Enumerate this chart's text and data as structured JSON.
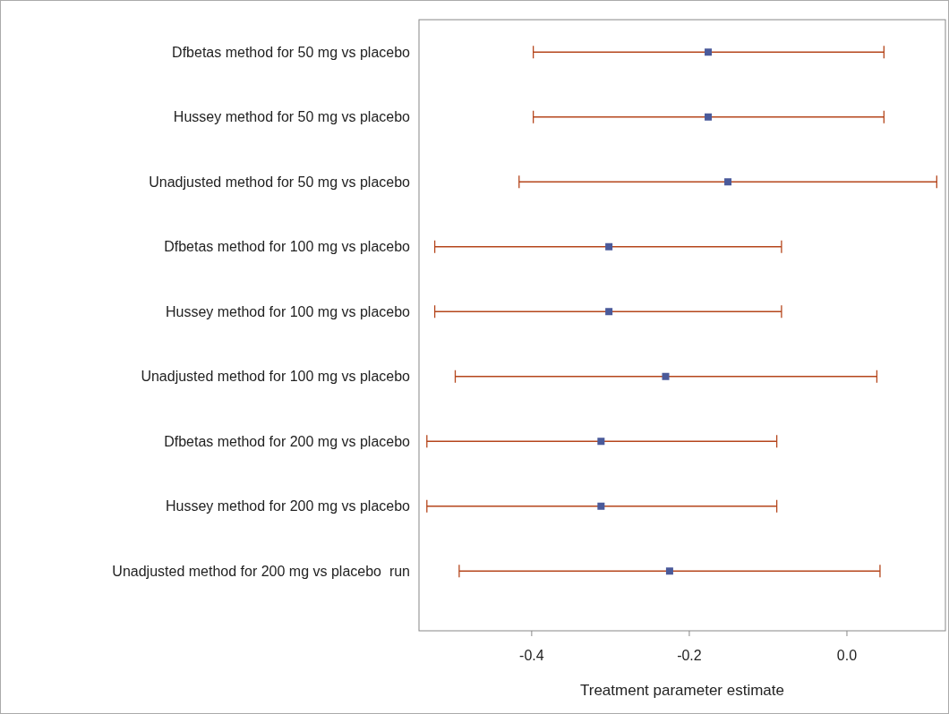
{
  "chart_data": {
    "type": "scatter",
    "orientation": "horizontal",
    "xlabel": "Treatment parameter estimate",
    "categories": [
      "Dfbetas method for 50 mg vs placebo",
      "Hussey method for 50 mg vs placebo",
      "Unadjusted method for 50 mg vs placebo",
      "Dfbetas method for 100 mg vs placebo",
      "Hussey method for 100 mg vs placebo",
      "Unadjusted method for 100 mg vs placebo",
      "Dfbetas method for 200 mg vs placebo",
      "Hussey method for 200 mg vs placebo",
      "Unadjusted method for 200 mg vs placebo  run"
    ],
    "series": [
      {
        "color": "#4a5a9a",
        "values": [
          -0.176,
          -0.176,
          -0.151,
          -0.302,
          -0.302,
          -0.23,
          -0.312,
          -0.312,
          -0.225
        ],
        "errors": [
          [
            -0.398,
            0.047
          ],
          [
            -0.398,
            0.047
          ],
          [
            -0.416,
            0.114
          ],
          [
            -0.523,
            -0.083
          ],
          [
            -0.523,
            -0.083
          ],
          [
            -0.497,
            0.038
          ],
          [
            -0.533,
            -0.089
          ],
          [
            -0.533,
            -0.089
          ],
          [
            -0.492,
            0.042
          ]
        ]
      }
    ],
    "xlim": [
      -0.543,
      0.125
    ],
    "xticks": [
      -0.4,
      -0.2,
      {
        "value": 0,
        "label": "0.0"
      }
    ],
    "marker": "square",
    "grid": false
  }
}
